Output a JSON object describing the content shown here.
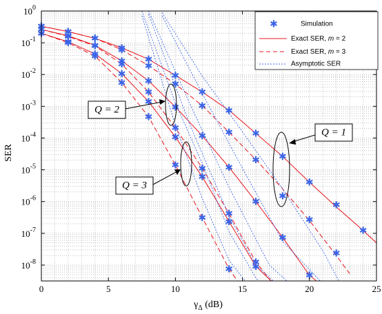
{
  "chart_data": {
    "type": "line",
    "xlabel_main": "γ",
    "xlabel_sub": "Δ",
    "xlabel_unit": " (dB)",
    "ylabel": "SER",
    "x_scale": "linear",
    "y_scale": "log",
    "xlim": [
      0,
      25
    ],
    "ylim_exp": [
      -8.5,
      0
    ],
    "grid": true,
    "legend_position": "top-right",
    "x_ticks": [
      0,
      5,
      10,
      15,
      20,
      25
    ],
    "y_ticks_exp": [
      0,
      -1,
      -2,
      -3,
      -4,
      -5,
      -6,
      -7,
      -8
    ],
    "legend": {
      "simulation": "Simulation",
      "exact_m2_prefix": "Exact SER, ",
      "exact_m2_var": "m",
      "exact_m2_suffix": " = 2",
      "exact_m3_prefix": "Exact SER, ",
      "exact_m3_var": "m",
      "exact_m3_suffix": " = 3",
      "asymptotic": "Asymptotic SER"
    },
    "annotations": {
      "q2": "Q = 2",
      "q3": "Q = 3",
      "q1": "Q = 1"
    },
    "colors": {
      "exact": "#e8141c",
      "asymptotic": "#3c64e6",
      "markers": "#3c64e6"
    },
    "series": [
      {
        "group": "Exact",
        "m": 2,
        "Q": 1,
        "x": [
          0,
          2,
          4,
          6,
          8,
          10,
          12,
          14,
          16,
          18,
          20,
          22,
          24,
          25
        ],
        "y_exp": [
          -0.48,
          -0.65,
          -0.86,
          -1.16,
          -1.52,
          -2.03,
          -2.55,
          -3.13,
          -3.85,
          -4.58,
          -5.39,
          -6.17,
          -6.91,
          -7.3
        ]
      },
      {
        "group": "Exact",
        "m": 3,
        "Q": 1,
        "x": [
          0,
          2,
          4,
          6,
          8,
          10,
          12,
          14,
          16,
          18,
          20,
          22,
          23
        ],
        "y_exp": [
          -0.48,
          -0.65,
          -0.86,
          -1.22,
          -1.72,
          -2.3,
          -2.98,
          -3.82,
          -4.68,
          -5.6,
          -6.6,
          -7.7,
          -8.27
        ]
      },
      {
        "group": "Exact",
        "m": 2,
        "Q": 2,
        "x": [
          0,
          2,
          4,
          6,
          8,
          10,
          12,
          14,
          16,
          18,
          20,
          20.8
        ],
        "y_exp": [
          -0.58,
          -0.78,
          -1.08,
          -1.57,
          -2.2,
          -3.02,
          -3.93,
          -4.92,
          -6.0,
          -7.13,
          -8.32,
          -8.6
        ]
      },
      {
        "group": "Exact",
        "m": 3,
        "Q": 2,
        "x": [
          0,
          2,
          4,
          6,
          8,
          10,
          12,
          14,
          16,
          17.5
        ],
        "y_exp": [
          -0.58,
          -0.8,
          -1.1,
          -1.67,
          -2.55,
          -3.68,
          -4.95,
          -6.38,
          -7.9,
          -8.7
        ]
      },
      {
        "group": "Exact",
        "m": 2,
        "Q": 3,
        "x": [
          0,
          2,
          4,
          6,
          8,
          10,
          12,
          14,
          16,
          17.4
        ],
        "y_exp": [
          -0.7,
          -0.97,
          -1.35,
          -1.97,
          -2.85,
          -3.97,
          -5.22,
          -6.63,
          -8.04,
          -8.6
        ]
      },
      {
        "group": "Exact",
        "m": 3,
        "Q": 3,
        "x": [
          0,
          2,
          4,
          6,
          8,
          10,
          12,
          14,
          14.8
        ],
        "y_exp": [
          -0.7,
          -1.0,
          -1.42,
          -2.25,
          -3.33,
          -4.85,
          -6.5,
          -8.12,
          -8.6
        ]
      },
      {
        "group": "Asymptotic",
        "x": [
          9,
          12,
          15,
          18,
          21,
          22.2
        ],
        "y_exp": [
          -0.05,
          -2.05,
          -3.8,
          -5.6,
          -7.55,
          -8.5
        ]
      },
      {
        "group": "Asymptotic",
        "x": [
          9,
          12,
          15,
          18,
          20.8
        ],
        "y_exp": [
          -0.15,
          -2.6,
          -4.95,
          -7.25,
          -8.5
        ]
      },
      {
        "group": "Asymptotic",
        "x": [
          8,
          11,
          14,
          17,
          18.3
        ],
        "y_exp": [
          0,
          -2.85,
          -5.55,
          -8.0,
          -8.5
        ]
      },
      {
        "group": "Asymptotic",
        "x": [
          8,
          11,
          14,
          16,
          17.3
        ],
        "y_exp": [
          -0.1,
          -3.5,
          -6.45,
          -8.0,
          -8.5
        ]
      },
      {
        "group": "Asymptotic",
        "x": [
          7.5,
          10,
          12,
          14,
          16,
          16.2
        ],
        "y_exp": [
          0,
          -2.9,
          -4.8,
          -6.95,
          -8.4,
          -8.5
        ]
      },
      {
        "group": "Asymptotic",
        "x": [
          7.5,
          10,
          12,
          14,
          15.2
        ],
        "y_exp": [
          -0.15,
          -3.6,
          -5.9,
          -7.85,
          -8.5
        ]
      },
      {
        "group": "Simulation",
        "x": [
          0,
          2,
          4,
          6,
          8,
          10,
          12,
          14,
          16,
          18,
          20,
          22,
          24
        ],
        "y_exp": [
          -0.48,
          -0.65,
          -0.86,
          -1.16,
          -1.52,
          -2.03,
          -2.55,
          -3.13,
          -3.85,
          -4.58,
          -5.39,
          -6.1,
          -6.91
        ]
      },
      {
        "group": "Simulation",
        "x": [
          0,
          2,
          4,
          6,
          8,
          10,
          12,
          14,
          16,
          18,
          20,
          22
        ],
        "y_exp": [
          -0.48,
          -0.65,
          -0.86,
          -1.22,
          -1.72,
          -2.3,
          -2.98,
          -3.82,
          -4.68,
          -5.82,
          -6.57,
          -7.62
        ]
      },
      {
        "group": "Simulation",
        "x": [
          0,
          2,
          4,
          6,
          8,
          10,
          12,
          14,
          16,
          18,
          20
        ],
        "y_exp": [
          -0.58,
          -0.78,
          -1.08,
          -1.57,
          -2.2,
          -3.02,
          -3.93,
          -4.92,
          -6.0,
          -7.13,
          -8.32
        ]
      },
      {
        "group": "Simulation",
        "x": [
          0,
          2,
          4,
          6,
          8,
          10,
          12,
          14,
          16
        ],
        "y_exp": [
          -0.58,
          -0.8,
          -1.1,
          -1.67,
          -2.55,
          -3.68,
          -4.95,
          -6.38,
          -7.9
        ]
      },
      {
        "group": "Simulation",
        "x": [
          0,
          2,
          4,
          6,
          8,
          10,
          12,
          14,
          16
        ],
        "y_exp": [
          -0.7,
          -0.97,
          -1.35,
          -1.97,
          -2.85,
          -3.97,
          -5.22,
          -6.63,
          -8.04
        ]
      },
      {
        "group": "Simulation",
        "x": [
          0,
          2,
          4,
          6,
          8,
          10,
          12,
          14
        ],
        "y_exp": [
          -0.7,
          -1.0,
          -1.42,
          -2.25,
          -3.33,
          -4.85,
          -6.5,
          -8.12
        ]
      }
    ]
  }
}
